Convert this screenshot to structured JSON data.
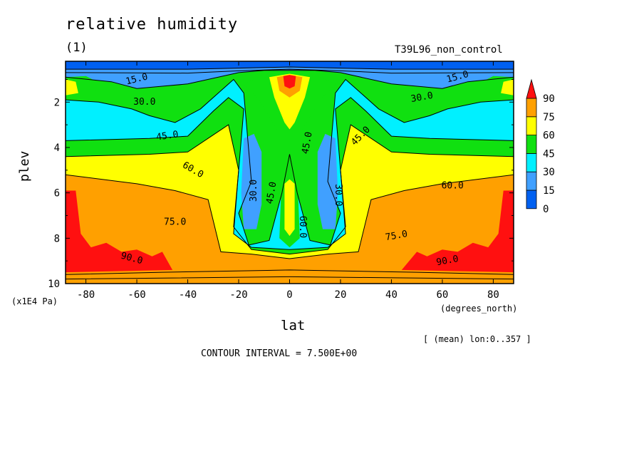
{
  "title": "relative humidity",
  "subtitle": "(1)",
  "run_label": "T39L96_non_control",
  "footnote_mean": "[ (mean) lon:0..357 ]",
  "contour_interval": "CONTOUR INTERVAL = 7.500E+00",
  "chart_data": {
    "type": "heatmap",
    "title": "relative humidity",
    "xlabel": "lat",
    "xunit": "(degrees_north)",
    "ylabel": "plev",
    "yunit": "(x1E4 Pa)",
    "xlim": [
      -88,
      88
    ],
    "ylim": [
      10,
      0.2
    ],
    "xticks": [
      -80,
      -60,
      -40,
      -20,
      0,
      20,
      40,
      60,
      80
    ],
    "yticks": [
      2,
      4,
      6,
      8,
      10
    ],
    "levels": [
      0,
      15,
      30,
      45,
      60,
      75,
      90
    ],
    "level_colors": [
      "#0060f0",
      "#40a0ff",
      "#00f0ff",
      "#10e010",
      "#ffff00",
      "#ffa000",
      "#ff1010"
    ],
    "colorbar_labels": [
      "0",
      "15",
      "30",
      "45",
      "60",
      "75",
      "90"
    ],
    "contour_labels": [
      {
        "text": "15.0",
        "lat": -60,
        "plev": 1.0,
        "rot": -14
      },
      {
        "text": "30.0",
        "lat": -57,
        "plev": 2.0,
        "rot": 0
      },
      {
        "text": "45.0",
        "lat": -48,
        "plev": 3.5,
        "rot": -8
      },
      {
        "text": "60.0",
        "lat": -38,
        "plev": 5.0,
        "rot": 30
      },
      {
        "text": "75.0",
        "lat": -45,
        "plev": 7.3,
        "rot": 0
      },
      {
        "text": "90.0",
        "lat": -62,
        "plev": 8.9,
        "rot": 15
      },
      {
        "text": "30.0",
        "lat": -14,
        "plev": 5.9,
        "rot": -90
      },
      {
        "text": "45.0",
        "lat": -7,
        "plev": 6.0,
        "rot": -80
      },
      {
        "text": "45.0",
        "lat": 7,
        "plev": 3.8,
        "rot": -80
      },
      {
        "text": "60.0",
        "lat": 5,
        "plev": 7.5,
        "rot": 90
      },
      {
        "text": "30.0",
        "lat": 19,
        "plev": 6.1,
        "rot": 90
      },
      {
        "text": "45.0",
        "lat": 28,
        "plev": 3.5,
        "rot": -45
      },
      {
        "text": "30.0",
        "lat": 52,
        "plev": 1.8,
        "rot": -10
      },
      {
        "text": "15.0",
        "lat": 66,
        "plev": 0.9,
        "rot": -15
      },
      {
        "text": "60.0",
        "lat": 64,
        "plev": 5.7,
        "rot": 0
      },
      {
        "text": "75.0",
        "lat": 42,
        "plev": 7.9,
        "rot": -10
      },
      {
        "text": "90.0",
        "lat": 62,
        "plev": 9.0,
        "rot": -10
      }
    ],
    "legend_position": "right",
    "grid": false
  }
}
